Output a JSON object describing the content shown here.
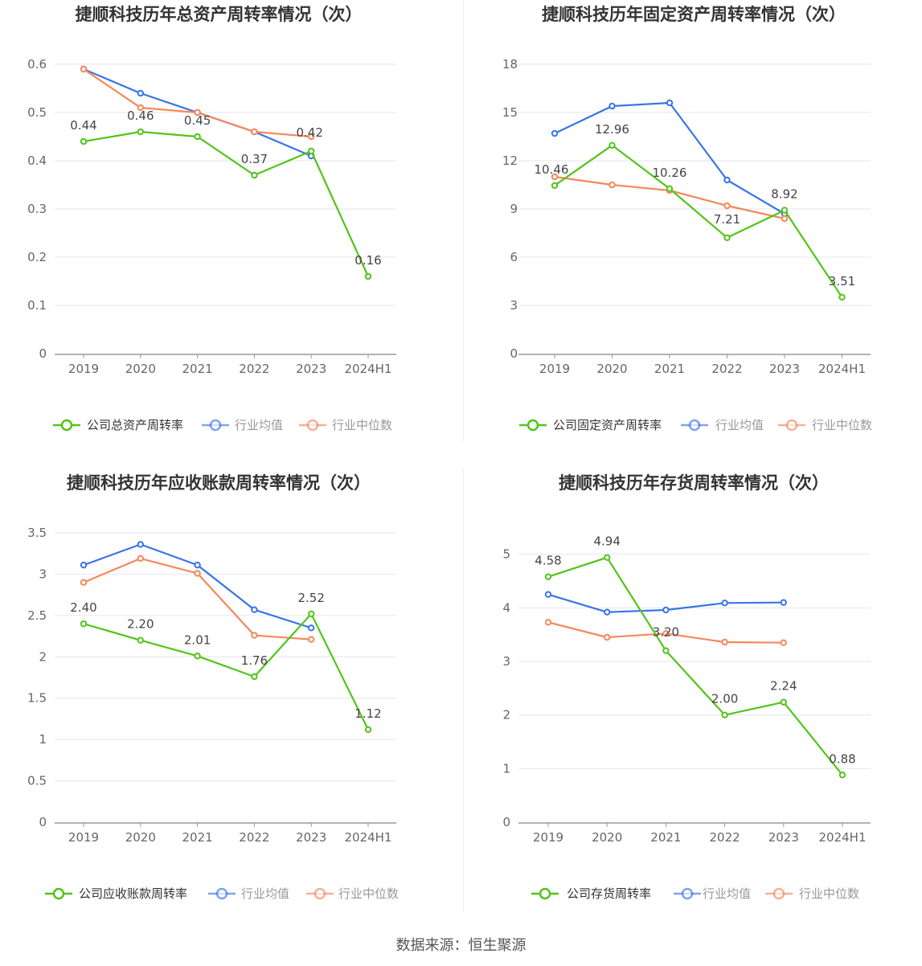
{
  "source": "数据来源：恒生聚源",
  "colors": {
    "company": "#52c41a",
    "avg": "#3a74e6",
    "median": "#f4885d",
    "grid": "#e6e6ee",
    "axis": "#999999"
  },
  "chart_data": [
    {
      "type": "line",
      "title": "捷顺科技历年总资产周转率情况（次）",
      "categories": [
        "2019",
        "2020",
        "2021",
        "2022",
        "2023",
        "2024H1"
      ],
      "yticks": [
        "0",
        "0.1",
        "0.2",
        "0.3",
        "0.4",
        "0.5",
        "0.6"
      ],
      "ylim": [
        0,
        0.6
      ],
      "series": [
        {
          "name": "公司总资产周转率",
          "role": "company",
          "values": [
            0.44,
            0.46,
            0.45,
            0.37,
            0.42,
            0.16
          ],
          "labels": [
            "0.44",
            "0.46",
            "0.45",
            "0.37",
            "0.42",
            "0.16"
          ]
        },
        {
          "name": "行业均值",
          "role": "avg",
          "values": [
            0.59,
            0.54,
            0.5,
            0.46,
            0.41,
            null
          ]
        },
        {
          "name": "行业中位数",
          "role": "median",
          "values": [
            0.59,
            0.51,
            0.5,
            0.46,
            0.45,
            null
          ]
        }
      ]
    },
    {
      "type": "line",
      "title": "捷顺科技历年固定资产周转率情况（次）",
      "categories": [
        "2019",
        "2020",
        "2021",
        "2022",
        "2023",
        "2024H1"
      ],
      "yticks": [
        "0",
        "3",
        "6",
        "9",
        "12",
        "15",
        "18"
      ],
      "ylim": [
        0,
        18
      ],
      "series": [
        {
          "name": "公司固定资产周转率",
          "role": "company",
          "values": [
            10.46,
            12.96,
            10.26,
            7.21,
            8.92,
            3.51
          ],
          "labels": [
            "10.46",
            "12.96",
            "10.26",
            "7.21",
            "8.92",
            "3.51"
          ]
        },
        {
          "name": "行业均值",
          "role": "avg",
          "values": [
            13.7,
            15.4,
            15.6,
            10.8,
            8.7,
            null
          ]
        },
        {
          "name": "行业中位数",
          "role": "median",
          "values": [
            11.0,
            10.5,
            10.15,
            9.2,
            8.4,
            null
          ]
        }
      ]
    },
    {
      "type": "line",
      "title": "捷顺科技历年应收账款周转率情况（次）",
      "categories": [
        "2019",
        "2020",
        "2021",
        "2022",
        "2023",
        "2024H1"
      ],
      "yticks": [
        "0",
        "0.5",
        "1",
        "1.5",
        "2",
        "2.5",
        "3",
        "3.5"
      ],
      "ylim": [
        0,
        3.5
      ],
      "series": [
        {
          "name": "公司应收账款周转率",
          "role": "company",
          "values": [
            2.4,
            2.2,
            2.01,
            1.76,
            2.52,
            1.12
          ],
          "labels": [
            "2.40",
            "2.20",
            "2.01",
            "1.76",
            "2.52",
            "1.12"
          ]
        },
        {
          "name": "行业均值",
          "role": "avg",
          "values": [
            3.11,
            3.36,
            3.11,
            2.57,
            2.35,
            null
          ]
        },
        {
          "name": "行业中位数",
          "role": "median",
          "values": [
            2.9,
            3.19,
            3.01,
            2.26,
            2.21,
            null
          ]
        }
      ]
    },
    {
      "type": "line",
      "title": "捷顺科技历年存货周转率情况（次）",
      "categories": [
        "2019",
        "2020",
        "2021",
        "2022",
        "2023",
        "2024H1"
      ],
      "yticks": [
        "0",
        "1",
        "2",
        "3",
        "4",
        "5"
      ],
      "ylim": [
        0,
        5.4
      ],
      "series": [
        {
          "name": "公司存货周转率",
          "role": "company",
          "values": [
            4.58,
            4.94,
            3.2,
            2.0,
            2.24,
            0.88
          ],
          "labels": [
            "4.58",
            "4.94",
            "3.20",
            "2.00",
            "2.24",
            "0.88"
          ]
        },
        {
          "name": "行业均值",
          "role": "avg",
          "values": [
            4.25,
            3.92,
            3.96,
            4.09,
            4.1,
            null
          ]
        },
        {
          "name": "行业中位数",
          "role": "median",
          "values": [
            3.73,
            3.45,
            3.52,
            3.36,
            3.35,
            null
          ]
        }
      ]
    }
  ]
}
